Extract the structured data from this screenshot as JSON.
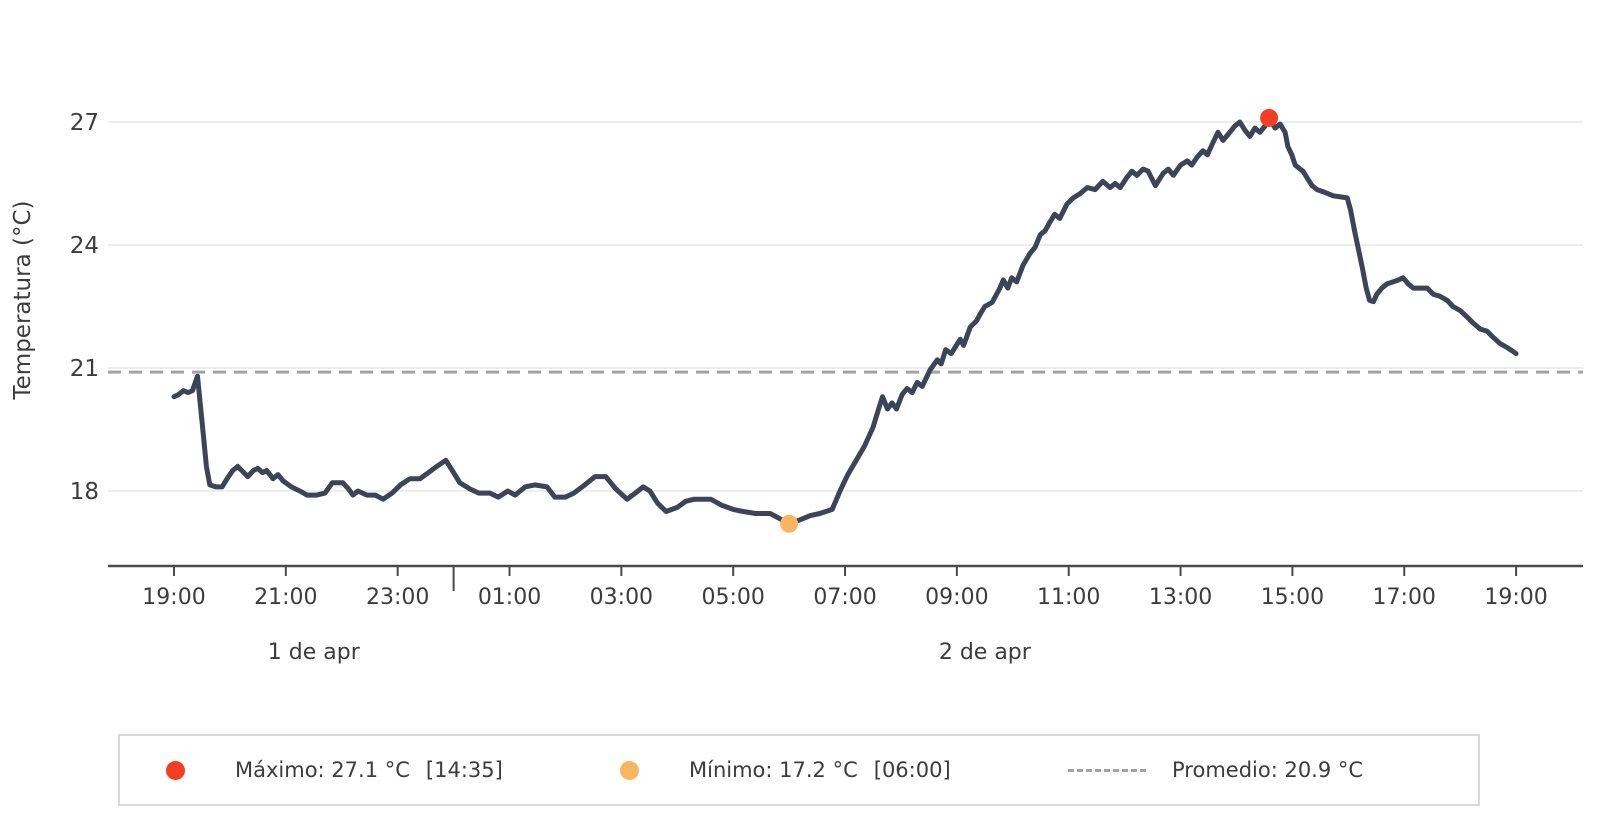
{
  "colors": {
    "series_line": "#3d4458",
    "max_marker": "#f43e24",
    "min_marker": "#f8b661",
    "avg_line": "#a3a3a3",
    "grid": "#ededed",
    "axis": "#4a4a4a",
    "text": "#3c3c3c"
  },
  "legend": {
    "max": {
      "label": "Máximo: 27.1 °C",
      "time": "[14:35]"
    },
    "min": {
      "label": "Mínimo: 17.2 °C",
      "time": "[06:00]"
    },
    "avg": {
      "label": "Promedio: 20.9 °C"
    }
  },
  "chart_data": {
    "type": "line",
    "title": "",
    "xlabel": "",
    "ylabel": "Temperatura (°C)",
    "ylim": [
      16.5,
      28.1
    ],
    "yticks": [
      18,
      21,
      24,
      27
    ],
    "grid": true,
    "legend_position": "bottom",
    "x_unit": "hours since 19:00 of day 1",
    "xtick_hours": [
      0,
      2,
      4,
      6,
      8,
      10,
      12,
      14,
      16,
      18,
      20,
      22,
      24
    ],
    "xtick_labels": [
      "19:00",
      "21:00",
      "23:00",
      "01:00",
      "03:00",
      "05:00",
      "07:00",
      "09:00",
      "11:00",
      "13:00",
      "15:00",
      "17:00",
      "19:00"
    ],
    "day_separator_hour": 5,
    "day_labels": [
      {
        "label": "1 de apr",
        "center_hour": 2.5
      },
      {
        "label": "2 de apr",
        "center_hour": 14.5
      }
    ],
    "average": 20.9,
    "max": {
      "value": 27.1,
      "time_label": "14:35",
      "hour": 19.583
    },
    "min": {
      "value": 17.2,
      "time_label": "06:00",
      "hour": 11.0
    },
    "series": [
      {
        "name": "Temperatura",
        "points": [
          [
            0.0,
            20.3
          ],
          [
            0.08,
            20.35
          ],
          [
            0.17,
            20.45
          ],
          [
            0.25,
            20.4
          ],
          [
            0.33,
            20.45
          ],
          [
            0.42,
            20.8
          ],
          [
            0.5,
            19.7
          ],
          [
            0.58,
            18.6
          ],
          [
            0.64,
            18.15
          ],
          [
            0.75,
            18.1
          ],
          [
            0.86,
            18.1
          ],
          [
            0.95,
            18.3
          ],
          [
            1.05,
            18.5
          ],
          [
            1.14,
            18.6
          ],
          [
            1.25,
            18.45
          ],
          [
            1.32,
            18.35
          ],
          [
            1.42,
            18.5
          ],
          [
            1.5,
            18.55
          ],
          [
            1.58,
            18.45
          ],
          [
            1.66,
            18.5
          ],
          [
            1.77,
            18.3
          ],
          [
            1.86,
            18.4
          ],
          [
            1.95,
            18.25
          ],
          [
            2.1,
            18.1
          ],
          [
            2.25,
            18.0
          ],
          [
            2.38,
            17.9
          ],
          [
            2.55,
            17.9
          ],
          [
            2.7,
            17.95
          ],
          [
            2.83,
            18.2
          ],
          [
            3.02,
            18.2
          ],
          [
            3.12,
            18.05
          ],
          [
            3.2,
            17.9
          ],
          [
            3.29,
            18.0
          ],
          [
            3.45,
            17.9
          ],
          [
            3.6,
            17.9
          ],
          [
            3.74,
            17.8
          ],
          [
            3.9,
            17.95
          ],
          [
            4.05,
            18.15
          ],
          [
            4.22,
            18.3
          ],
          [
            4.4,
            18.3
          ],
          [
            4.55,
            18.45
          ],
          [
            4.7,
            18.6
          ],
          [
            4.86,
            18.75
          ],
          [
            5.0,
            18.45
          ],
          [
            5.11,
            18.2
          ],
          [
            5.29,
            18.05
          ],
          [
            5.45,
            17.95
          ],
          [
            5.65,
            17.95
          ],
          [
            5.8,
            17.85
          ],
          [
            5.97,
            18.0
          ],
          [
            6.1,
            17.9
          ],
          [
            6.28,
            18.1
          ],
          [
            6.45,
            18.15
          ],
          [
            6.67,
            18.1
          ],
          [
            6.81,
            17.85
          ],
          [
            7.0,
            17.85
          ],
          [
            7.15,
            17.95
          ],
          [
            7.3,
            18.1
          ],
          [
            7.53,
            18.35
          ],
          [
            7.72,
            18.35
          ],
          [
            7.9,
            18.05
          ],
          [
            8.1,
            17.8
          ],
          [
            8.25,
            17.95
          ],
          [
            8.39,
            18.1
          ],
          [
            8.51,
            18.0
          ],
          [
            8.65,
            17.7
          ],
          [
            8.8,
            17.5
          ],
          [
            9.0,
            17.6
          ],
          [
            9.15,
            17.75
          ],
          [
            9.3,
            17.8
          ],
          [
            9.6,
            17.8
          ],
          [
            9.8,
            17.65
          ],
          [
            10.0,
            17.55
          ],
          [
            10.18,
            17.5
          ],
          [
            10.4,
            17.45
          ],
          [
            10.66,
            17.45
          ],
          [
            10.8,
            17.35
          ],
          [
            11.0,
            17.2
          ],
          [
            11.2,
            17.3
          ],
          [
            11.38,
            17.4
          ],
          [
            11.55,
            17.45
          ],
          [
            11.77,
            17.55
          ],
          [
            11.91,
            18.0
          ],
          [
            12.05,
            18.4
          ],
          [
            12.2,
            18.75
          ],
          [
            12.35,
            19.1
          ],
          [
            12.5,
            19.55
          ],
          [
            12.6,
            20.0
          ],
          [
            12.67,
            20.3
          ],
          [
            12.76,
            20.0
          ],
          [
            12.84,
            20.15
          ],
          [
            12.92,
            20.0
          ],
          [
            13.02,
            20.35
          ],
          [
            13.11,
            20.5
          ],
          [
            13.2,
            20.4
          ],
          [
            13.29,
            20.65
          ],
          [
            13.38,
            20.55
          ],
          [
            13.52,
            20.95
          ],
          [
            13.65,
            21.2
          ],
          [
            13.72,
            21.1
          ],
          [
            13.8,
            21.45
          ],
          [
            13.9,
            21.35
          ],
          [
            14.06,
            21.7
          ],
          [
            14.12,
            21.55
          ],
          [
            14.24,
            22.0
          ],
          [
            14.35,
            22.15
          ],
          [
            14.41,
            22.3
          ],
          [
            14.5,
            22.5
          ],
          [
            14.63,
            22.6
          ],
          [
            14.77,
            22.95
          ],
          [
            14.83,
            23.15
          ],
          [
            14.91,
            22.95
          ],
          [
            14.98,
            23.2
          ],
          [
            15.07,
            23.1
          ],
          [
            15.18,
            23.5
          ],
          [
            15.31,
            23.8
          ],
          [
            15.4,
            23.95
          ],
          [
            15.49,
            24.25
          ],
          [
            15.58,
            24.35
          ],
          [
            15.66,
            24.55
          ],
          [
            15.75,
            24.75
          ],
          [
            15.84,
            24.65
          ],
          [
            15.97,
            25.0
          ],
          [
            16.08,
            25.15
          ],
          [
            16.2,
            25.25
          ],
          [
            16.33,
            25.4
          ],
          [
            16.47,
            25.35
          ],
          [
            16.61,
            25.55
          ],
          [
            16.74,
            25.4
          ],
          [
            16.83,
            25.5
          ],
          [
            16.92,
            25.4
          ],
          [
            17.04,
            25.65
          ],
          [
            17.13,
            25.8
          ],
          [
            17.22,
            25.7
          ],
          [
            17.33,
            25.85
          ],
          [
            17.42,
            25.8
          ],
          [
            17.55,
            25.45
          ],
          [
            17.69,
            25.75
          ],
          [
            17.78,
            25.85
          ],
          [
            17.87,
            25.7
          ],
          [
            18.0,
            25.95
          ],
          [
            18.12,
            26.05
          ],
          [
            18.2,
            25.95
          ],
          [
            18.3,
            26.15
          ],
          [
            18.4,
            26.3
          ],
          [
            18.48,
            26.2
          ],
          [
            18.58,
            26.5
          ],
          [
            18.67,
            26.75
          ],
          [
            18.76,
            26.55
          ],
          [
            18.88,
            26.75
          ],
          [
            18.97,
            26.9
          ],
          [
            19.06,
            27.0
          ],
          [
            19.15,
            26.8
          ],
          [
            19.24,
            26.65
          ],
          [
            19.33,
            26.85
          ],
          [
            19.42,
            26.75
          ],
          [
            19.51,
            26.9
          ],
          [
            19.58,
            27.1
          ],
          [
            19.69,
            26.85
          ],
          [
            19.78,
            26.95
          ],
          [
            19.87,
            26.75
          ],
          [
            19.92,
            26.4
          ],
          [
            19.99,
            26.2
          ],
          [
            20.05,
            25.95
          ],
          [
            20.14,
            25.85
          ],
          [
            20.19,
            25.8
          ],
          [
            20.28,
            25.6
          ],
          [
            20.35,
            25.45
          ],
          [
            20.44,
            25.35
          ],
          [
            20.55,
            25.3
          ],
          [
            20.73,
            25.2
          ],
          [
            20.98,
            25.15
          ],
          [
            21.04,
            24.85
          ],
          [
            21.11,
            24.35
          ],
          [
            21.18,
            23.9
          ],
          [
            21.25,
            23.45
          ],
          [
            21.32,
            22.95
          ],
          [
            21.38,
            22.65
          ],
          [
            21.45,
            22.62
          ],
          [
            21.51,
            22.8
          ],
          [
            21.6,
            22.95
          ],
          [
            21.69,
            23.05
          ],
          [
            21.8,
            23.1
          ],
          [
            21.9,
            23.15
          ],
          [
            21.98,
            23.2
          ],
          [
            22.07,
            23.05
          ],
          [
            22.16,
            22.95
          ],
          [
            22.3,
            22.95
          ],
          [
            22.41,
            22.95
          ],
          [
            22.52,
            22.8
          ],
          [
            22.64,
            22.75
          ],
          [
            22.77,
            22.65
          ],
          [
            22.87,
            22.5
          ],
          [
            23.0,
            22.4
          ],
          [
            23.12,
            22.25
          ],
          [
            23.23,
            22.1
          ],
          [
            23.36,
            21.95
          ],
          [
            23.48,
            21.9
          ],
          [
            23.59,
            21.75
          ],
          [
            23.71,
            21.6
          ],
          [
            23.84,
            21.5
          ],
          [
            23.95,
            21.4
          ],
          [
            24.0,
            21.35
          ]
        ]
      }
    ]
  }
}
